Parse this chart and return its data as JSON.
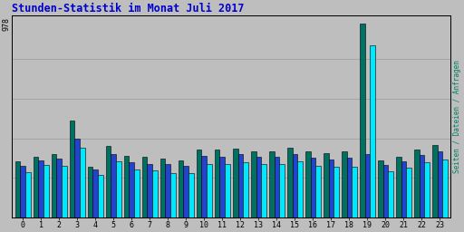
{
  "title": "Stunden-Statistik im Monat Juli 2017",
  "title_color": "#0000cc",
  "ylabel_right": "Seiten / Dateien / Anfragen",
  "ylabel_right_color": "#008060",
  "xlabel_labels": [
    "0",
    "1",
    "2",
    "3",
    "4",
    "5",
    "6",
    "7",
    "8",
    "9",
    "10",
    "11",
    "12",
    "13",
    "14",
    "15",
    "16",
    "17",
    "18",
    "19",
    "20",
    "21",
    "22",
    "23"
  ],
  "ytick_label": "978",
  "background_color": "#bebebe",
  "plot_bg_color": "#bebebe",
  "border_color": "#000000",
  "bar_width": 0.28,
  "colors": [
    "#007060",
    "#2244cc",
    "#00e8ff"
  ],
  "seiten": [
    285,
    308,
    318,
    490,
    258,
    362,
    312,
    308,
    298,
    288,
    342,
    342,
    348,
    332,
    332,
    352,
    332,
    326,
    332,
    978,
    288,
    308,
    345,
    365
  ],
  "dateien": [
    262,
    290,
    296,
    400,
    242,
    318,
    280,
    270,
    268,
    260,
    310,
    306,
    318,
    306,
    306,
    320,
    300,
    295,
    300,
    320,
    266,
    284,
    316,
    334
  ],
  "anfragen": [
    228,
    264,
    262,
    352,
    215,
    285,
    243,
    238,
    225,
    226,
    272,
    272,
    278,
    268,
    268,
    282,
    260,
    256,
    256,
    870,
    232,
    252,
    278,
    292
  ],
  "ylim": [
    0,
    1020
  ],
  "hlines_y": [
    200,
    400,
    600,
    800
  ],
  "figsize": [
    5.12,
    2.56
  ],
  "dpi": 100
}
